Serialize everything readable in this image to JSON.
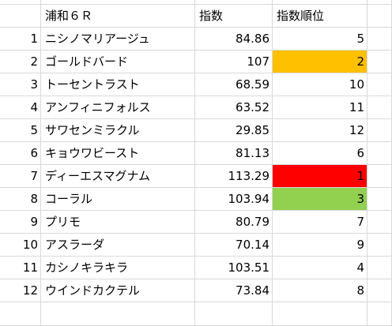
{
  "header": {
    "row_label": "",
    "name": "浦和６Ｒ",
    "index": "指数",
    "rank": "指数順位"
  },
  "rows": [
    {
      "n": "1",
      "name": "ニシノマリアージュ",
      "index": "84.86",
      "rank": "5",
      "highlight": ""
    },
    {
      "n": "2",
      "name": "ゴールドバード",
      "index": "107",
      "rank": "2",
      "highlight": "#ffc000"
    },
    {
      "n": "3",
      "name": "トーセントラスト",
      "index": "68.59",
      "rank": "10",
      "highlight": ""
    },
    {
      "n": "4",
      "name": "アンフィニフォルス",
      "index": "63.52",
      "rank": "11",
      "highlight": ""
    },
    {
      "n": "5",
      "name": "サワセンミラクル",
      "index": "29.85",
      "rank": "12",
      "highlight": ""
    },
    {
      "n": "6",
      "name": "キョウワビースト",
      "index": "81.13",
      "rank": "6",
      "highlight": ""
    },
    {
      "n": "7",
      "name": "ディーエスマグナム",
      "index": "113.29",
      "rank": "1",
      "highlight": "#ff0000"
    },
    {
      "n": "8",
      "name": "コーラル",
      "index": "103.94",
      "rank": "3",
      "highlight": "#92d050"
    },
    {
      "n": "9",
      "name": "プリモ",
      "index": "80.79",
      "rank": "7",
      "highlight": ""
    },
    {
      "n": "10",
      "name": "アスラーダ",
      "index": "70.14",
      "rank": "9",
      "highlight": ""
    },
    {
      "n": "11",
      "name": "カシノキラキラ",
      "index": "103.51",
      "rank": "4",
      "highlight": ""
    },
    {
      "n": "12",
      "name": "ウインドカクテル",
      "index": "73.84",
      "rank": "8",
      "highlight": ""
    }
  ]
}
